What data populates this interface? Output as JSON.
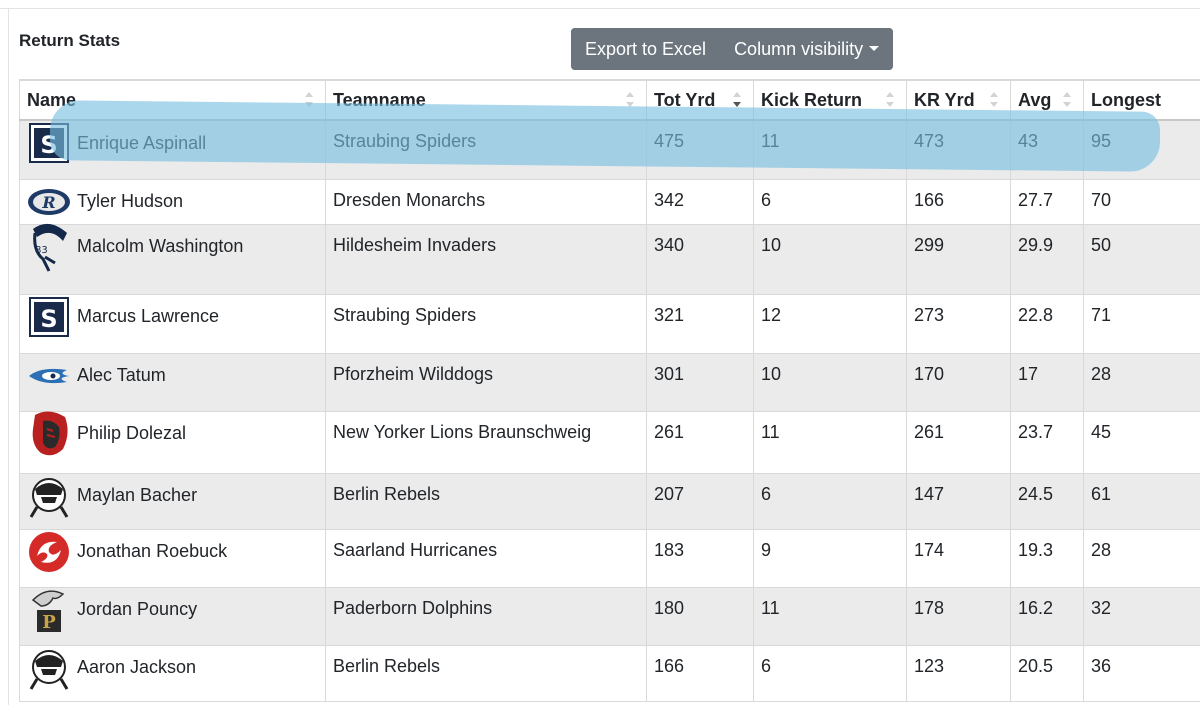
{
  "page": {
    "title": "Return Stats"
  },
  "toolbar": {
    "export_label": "Export to Excel",
    "column_visibility_label": "Column visibility"
  },
  "columns": [
    "Name",
    "Teamname",
    "Tot Yrd",
    "Kick Return",
    "KR Yrd",
    "Avg",
    "Longest"
  ],
  "rows": [
    {
      "name": "Enrique Aspinall",
      "team": "Straubing Spiders",
      "tot_yrd": "475",
      "kick_return": "11",
      "kr_yrd": "473",
      "avg": "43",
      "longest": "95",
      "logo": "straubing-spiders-logo"
    },
    {
      "name": "Tyler Hudson",
      "team": "Dresden Monarchs",
      "tot_yrd": "342",
      "kick_return": "6",
      "kr_yrd": "166",
      "avg": "27.7",
      "longest": "70",
      "logo": "dresden-monarchs-logo"
    },
    {
      "name": "Malcolm Washington",
      "team": "Hildesheim Invaders",
      "tot_yrd": "340",
      "kick_return": "10",
      "kr_yrd": "299",
      "avg": "29.9",
      "longest": "50",
      "logo": "hildesheim-invaders-logo"
    },
    {
      "name": "Marcus Lawrence",
      "team": "Straubing Spiders",
      "tot_yrd": "321",
      "kick_return": "12",
      "kr_yrd": "273",
      "avg": "22.8",
      "longest": "71",
      "logo": "straubing-spiders-logo"
    },
    {
      "name": "Alec Tatum",
      "team": "Pforzheim Wilddogs",
      "tot_yrd": "301",
      "kick_return": "10",
      "kr_yrd": "170",
      "avg": "17",
      "longest": "28",
      "logo": "pforzheim-wilddogs-logo"
    },
    {
      "name": "Philip Dolezal",
      "team": "New Yorker Lions Braunschweig",
      "tot_yrd": "261",
      "kick_return": "11",
      "kr_yrd": "261",
      "avg": "23.7",
      "longest": "45",
      "logo": "braunschweig-lions-logo"
    },
    {
      "name": "Maylan Bacher",
      "team": "Berlin Rebels",
      "tot_yrd": "207",
      "kick_return": "6",
      "kr_yrd": "147",
      "avg": "24.5",
      "longest": "61",
      "logo": "berlin-rebels-logo"
    },
    {
      "name": "Jonathan Roebuck",
      "team": "Saarland Hurricanes",
      "tot_yrd": "183",
      "kick_return": "9",
      "kr_yrd": "174",
      "avg": "19.3",
      "longest": "28",
      "logo": "saarland-hurricanes-logo"
    },
    {
      "name": "Jordan Pouncy",
      "team": "Paderborn Dolphins",
      "tot_yrd": "180",
      "kick_return": "11",
      "kr_yrd": "178",
      "avg": "16.2",
      "longest": "32",
      "logo": "paderborn-dolphins-logo"
    },
    {
      "name": "Aaron Jackson",
      "team": "Berlin Rebels",
      "tot_yrd": "166",
      "kick_return": "6",
      "kr_yrd": "123",
      "avg": "20.5",
      "longest": "36",
      "logo": "berlin-rebels-logo"
    }
  ],
  "sort": {
    "column": "Tot Yrd",
    "direction": "descending"
  },
  "colors": {
    "button_bg": "#6c757d",
    "stripe_bg": "#ebebeb",
    "highlight": "#78bee1"
  }
}
